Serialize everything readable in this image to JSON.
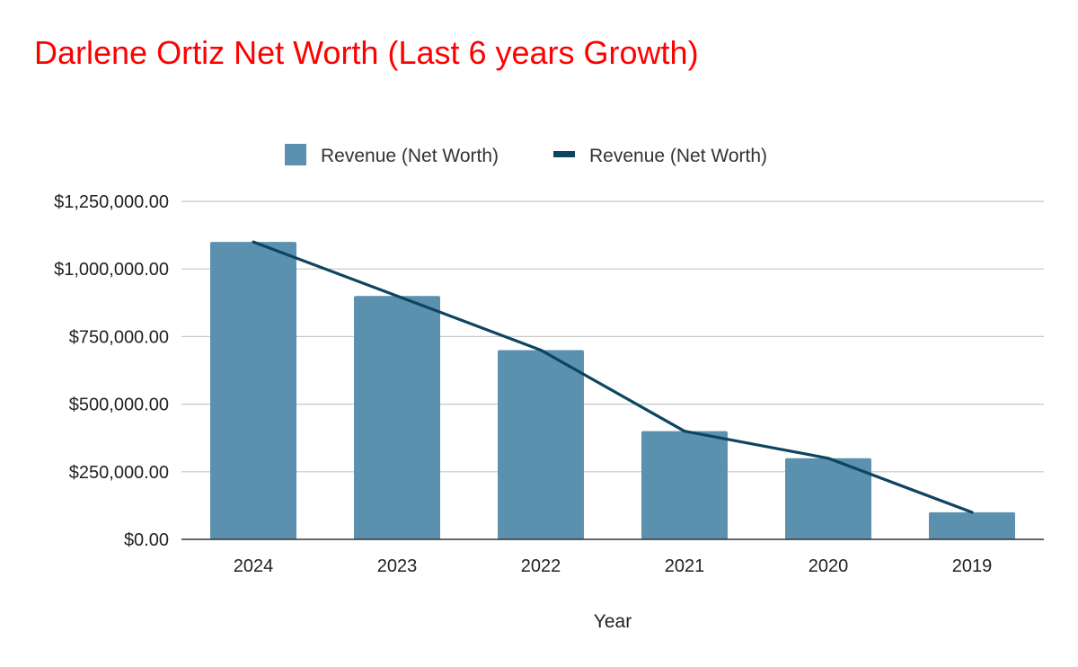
{
  "chart_data": {
    "type": "bar",
    "title": "Darlene Ortiz Net Worth (Last 6 years Growth)",
    "title_color": "#ff0000",
    "xlabel": "Year",
    "ylabel": "",
    "categories": [
      "2024",
      "2023",
      "2022",
      "2021",
      "2020",
      "2019"
    ],
    "series": [
      {
        "name": "Revenue (Net Worth)",
        "type": "bar",
        "color": "#5b91ae",
        "values": [
          1100000,
          900000,
          700000,
          400000,
          300000,
          100000
        ]
      },
      {
        "name": "Revenue (Net Worth)",
        "type": "line",
        "color": "#0d4560",
        "values": [
          1100000,
          900000,
          700000,
          400000,
          300000,
          100000
        ]
      }
    ],
    "ylim": [
      0,
      1250000
    ],
    "yticks": [
      0,
      250000,
      500000,
      750000,
      1000000,
      1250000
    ],
    "ytick_labels": [
      "$0.00",
      "$250,000.00",
      "$500,000.00",
      "$750,000.00",
      "$1,000,000.00",
      "$1,250,000.00"
    ],
    "grid": true,
    "legend_position": "top-center"
  }
}
